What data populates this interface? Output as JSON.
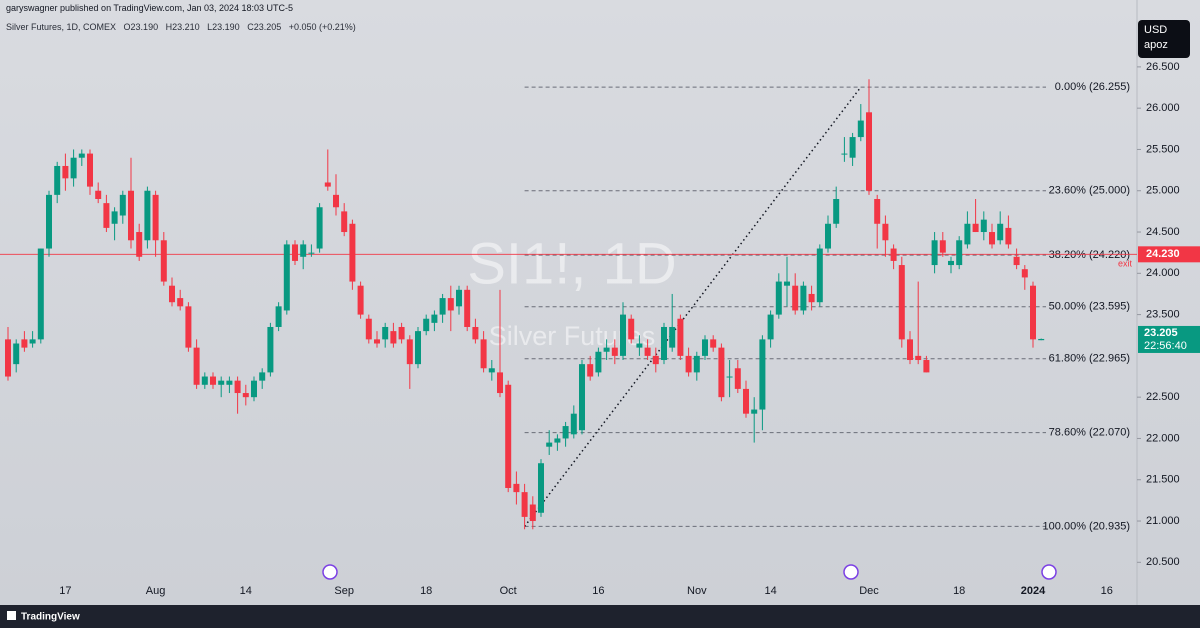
{
  "publisher": "garyswagner published on TradingView.com, Jan 03, 2024 18:03 UTC-5",
  "currency": "USD",
  "unit": "apoz",
  "footer": "TradingView",
  "chart_data": {
    "type": "candlestick",
    "instrument": "Silver Futures, 1D, COMEX",
    "ohlc_labels": [
      "O23.190",
      "H23.210",
      "L23.190",
      "C23.205",
      "+0.050 (+0.21%)"
    ],
    "symbol_watermark": "SI1!, 1D",
    "description_watermark": "Silver Futures",
    "up_color": "#089981",
    "down_color": "#f23645",
    "categories": [
      null,
      null,
      null,
      null,
      null,
      null,
      null,
      "17",
      null,
      null,
      null,
      null,
      null,
      null,
      null,
      null,
      null,
      null,
      "Aug",
      null,
      null,
      null,
      null,
      null,
      null,
      null,
      null,
      null,
      null,
      "14",
      null,
      null,
      null,
      null,
      null,
      null,
      null,
      null,
      null,
      null,
      null,
      "Sep",
      null,
      null,
      null,
      null,
      null,
      null,
      null,
      null,
      null,
      "18",
      null,
      null,
      null,
      null,
      null,
      null,
      null,
      null,
      null,
      "Oct",
      null,
      null,
      null,
      null,
      null,
      null,
      null,
      null,
      null,
      null,
      "16",
      null,
      null,
      null,
      null,
      null,
      null,
      null,
      null,
      null,
      null,
      null,
      "Nov",
      null,
      null,
      null,
      null,
      null,
      null,
      null,
      null,
      "14",
      null,
      null,
      null,
      null,
      null,
      null,
      null,
      null,
      null,
      null,
      null,
      "Dec",
      null,
      null,
      null,
      null,
      null,
      null,
      null,
      null,
      null,
      null,
      "18",
      null,
      null,
      null,
      null,
      null,
      null,
      null,
      null,
      "2024",
      null,
      null,
      null,
      null,
      null,
      null,
      null,
      null,
      "16"
    ],
    "open": [
      23.2,
      22.9,
      23.2,
      23.15,
      23.2,
      24.3,
      24.95,
      25.3,
      25.15,
      25.4,
      25.45,
      25.0,
      24.85,
      24.6,
      24.7,
      25.0,
      24.5,
      24.4,
      24.95,
      24.4,
      23.85,
      23.7,
      23.6,
      23.1,
      22.65,
      22.75,
      22.65,
      22.65,
      22.7,
      22.55,
      22.5,
      22.7,
      22.8,
      23.35,
      23.55,
      24.35,
      24.2,
      24.25,
      24.3,
      25.1,
      24.95,
      24.75,
      24.6,
      23.85,
      23.45,
      23.2,
      23.2,
      23.3,
      23.35,
      23.2,
      22.9,
      23.3,
      23.4,
      23.5,
      23.7,
      23.6,
      23.8,
      23.35,
      23.2,
      22.8,
      22.8,
      22.65,
      21.45,
      21.35,
      21.2,
      21.1,
      21.9,
      21.95,
      22.0,
      22.05,
      22.1,
      22.9,
      22.8,
      23.05,
      23.1,
      23.0,
      23.45,
      23.1,
      23.1,
      23.0,
      22.95,
      23.1,
      23.45,
      23.0,
      22.8,
      23.0,
      23.2,
      23.1,
      22.75,
      22.85,
      22.6,
      22.3,
      22.35,
      23.2,
      23.5,
      23.85,
      23.85,
      23.55,
      23.75,
      23.65,
      24.3,
      24.6,
      25.45,
      25.4,
      25.65,
      25.95,
      24.9,
      24.6,
      24.3,
      24.1,
      23.2,
      23.0,
      22.95,
      24.1,
      24.4,
      24.1,
      24.1,
      24.35,
      24.6,
      24.5,
      24.5,
      24.4,
      24.55,
      24.2,
      24.05,
      23.85,
      23.19,
      null,
      null,
      null,
      null,
      null,
      null,
      null,
      null
    ],
    "high": [
      23.35,
      23.2,
      23.3,
      23.3,
      24.3,
      25.0,
      25.35,
      25.45,
      25.5,
      25.5,
      25.5,
      25.1,
      24.95,
      24.8,
      25.0,
      25.4,
      24.6,
      25.05,
      25.0,
      24.5,
      23.95,
      23.8,
      23.65,
      23.2,
      22.8,
      22.8,
      22.75,
      22.75,
      22.75,
      22.65,
      22.75,
      22.85,
      23.4,
      23.65,
      24.4,
      24.4,
      24.4,
      24.35,
      24.85,
      25.5,
      25.2,
      24.85,
      24.65,
      23.9,
      23.5,
      23.3,
      23.4,
      23.4,
      23.4,
      23.25,
      23.35,
      23.5,
      23.55,
      23.75,
      23.85,
      23.85,
      23.85,
      23.45,
      23.3,
      22.95,
      23.8,
      22.7,
      21.6,
      21.45,
      21.3,
      21.75,
      22.1,
      22.05,
      22.2,
      22.4,
      22.95,
      23.0,
      23.1,
      23.2,
      23.2,
      23.65,
      23.5,
      23.25,
      23.2,
      23.1,
      23.4,
      23.75,
      23.5,
      23.1,
      23.05,
      23.25,
      23.25,
      23.15,
      22.95,
      22.95,
      22.7,
      22.5,
      23.25,
      23.55,
      24.0,
      24.2,
      24.0,
      23.9,
      23.85,
      24.35,
      24.7,
      25.05,
      25.65,
      25.7,
      26.05,
      26.35,
      24.95,
      24.7,
      24.35,
      24.2,
      23.3,
      23.9,
      23.0,
      24.5,
      24.5,
      24.2,
      24.45,
      24.75,
      24.9,
      24.75,
      24.6,
      24.75,
      24.7,
      24.3,
      24.1,
      23.9,
      23.21,
      null,
      null,
      null,
      null,
      null,
      null,
      null,
      null
    ],
    "low": [
      22.7,
      22.8,
      23.05,
      23.1,
      23.15,
      24.2,
      24.85,
      25.0,
      25.05,
      25.3,
      24.95,
      24.85,
      24.5,
      24.4,
      24.6,
      24.3,
      24.15,
      24.3,
      24.2,
      23.85,
      23.6,
      23.55,
      23.05,
      22.6,
      22.6,
      22.6,
      22.5,
      22.55,
      22.3,
      22.4,
      22.45,
      22.6,
      22.75,
      23.3,
      23.5,
      24.1,
      24.05,
      24.2,
      24.25,
      25.0,
      24.7,
      24.45,
      23.8,
      23.45,
      23.15,
      23.1,
      23.1,
      23.1,
      23.15,
      22.6,
      22.85,
      23.25,
      23.3,
      23.4,
      23.3,
      23.5,
      23.3,
      23.15,
      22.8,
      22.7,
      22.5,
      21.35,
      21.2,
      20.9,
      20.9,
      21.05,
      21.8,
      21.85,
      21.9,
      22.0,
      22.05,
      22.7,
      22.75,
      22.95,
      22.9,
      22.95,
      23.15,
      23.0,
      22.95,
      22.8,
      22.9,
      23.05,
      22.95,
      22.75,
      22.7,
      22.95,
      23.05,
      22.45,
      22.5,
      22.55,
      22.25,
      21.95,
      22.1,
      23.1,
      23.45,
      23.6,
      23.5,
      23.5,
      23.55,
      23.6,
      24.25,
      24.55,
      25.35,
      25.3,
      25.6,
      24.95,
      24.3,
      24.2,
      24.05,
      23.1,
      22.9,
      22.9,
      22.8,
      24.0,
      24.2,
      24.0,
      24.05,
      24.3,
      24.5,
      24.4,
      24.3,
      24.35,
      24.3,
      24.05,
      23.8,
      23.1,
      23.19,
      null,
      null,
      null,
      null,
      null,
      null,
      null,
      null
    ],
    "close": [
      22.75,
      23.15,
      23.1,
      23.2,
      24.3,
      24.95,
      25.3,
      25.15,
      25.4,
      25.45,
      25.05,
      24.9,
      24.55,
      24.75,
      24.95,
      24.4,
      24.2,
      25.0,
      24.4,
      23.9,
      23.65,
      23.6,
      23.1,
      22.65,
      22.75,
      22.65,
      22.7,
      22.7,
      22.55,
      22.5,
      22.7,
      22.8,
      23.35,
      23.6,
      24.35,
      24.15,
      24.35,
      24.25,
      24.8,
      25.05,
      24.8,
      24.5,
      23.9,
      23.5,
      23.2,
      23.15,
      23.35,
      23.15,
      23.2,
      22.9,
      23.3,
      23.45,
      23.5,
      23.7,
      23.55,
      23.8,
      23.35,
      23.2,
      22.85,
      22.85,
      22.55,
      21.4,
      21.35,
      21.05,
      21.0,
      21.7,
      21.95,
      22.0,
      22.15,
      22.3,
      22.9,
      22.75,
      23.05,
      23.1,
      23.0,
      23.5,
      23.2,
      23.15,
      23.0,
      22.9,
      23.35,
      23.35,
      23.0,
      22.8,
      23.0,
      23.2,
      23.1,
      22.5,
      22.75,
      22.6,
      22.3,
      22.35,
      23.2,
      23.5,
      23.9,
      23.9,
      23.55,
      23.85,
      23.65,
      24.3,
      24.6,
      24.9,
      25.45,
      25.65,
      25.85,
      25.0,
      24.6,
      24.4,
      24.15,
      23.2,
      22.95,
      22.95,
      22.8,
      24.4,
      24.25,
      24.15,
      24.4,
      24.6,
      24.5,
      24.65,
      24.35,
      24.6,
      24.35,
      24.1,
      23.95,
      23.2,
      23.205,
      null,
      null,
      null,
      null,
      null,
      null,
      null,
      null
    ],
    "ylim": [
      20.31,
      27.31
    ],
    "yticks": [
      {
        "value": 20.5,
        "label": "20.500"
      },
      {
        "value": 21,
        "label": "21.000"
      },
      {
        "value": 21.5,
        "label": "21.500"
      },
      {
        "value": 22,
        "label": "22.000"
      },
      {
        "value": 22.5,
        "label": "22.500"
      },
      {
        "value": 23.5,
        "label": "23.500"
      },
      {
        "value": 24,
        "label": "24.000"
      },
      {
        "value": 24.5,
        "label": "24.500"
      },
      {
        "value": 25,
        "label": "25.000"
      },
      {
        "value": 25.5,
        "label": "25.500"
      },
      {
        "value": 26,
        "label": "26.000"
      },
      {
        "value": 26.5,
        "label": "26.500"
      }
    ],
    "fib_levels": [
      {
        "value": 26.255,
        "label": "0.00% (26.255)"
      },
      {
        "value": 25.0,
        "label": "23.60% (25.000)"
      },
      {
        "value": 24.22,
        "label": "38.20% (24.220)"
      },
      {
        "value": 23.595,
        "label": "50.00% (23.595)"
      },
      {
        "value": 22.965,
        "label": "61.80% (22.965)"
      },
      {
        "value": 22.07,
        "label": "78.60% (22.070)"
      },
      {
        "value": 20.935,
        "label": "100.00% (20.935)"
      }
    ],
    "alert_line": {
      "value": 24.23,
      "label": "24.230",
      "note": "exit"
    },
    "current_price": {
      "value": 23.205,
      "label": "23.205",
      "countdown": "22:56:40"
    },
    "grid": false
  }
}
